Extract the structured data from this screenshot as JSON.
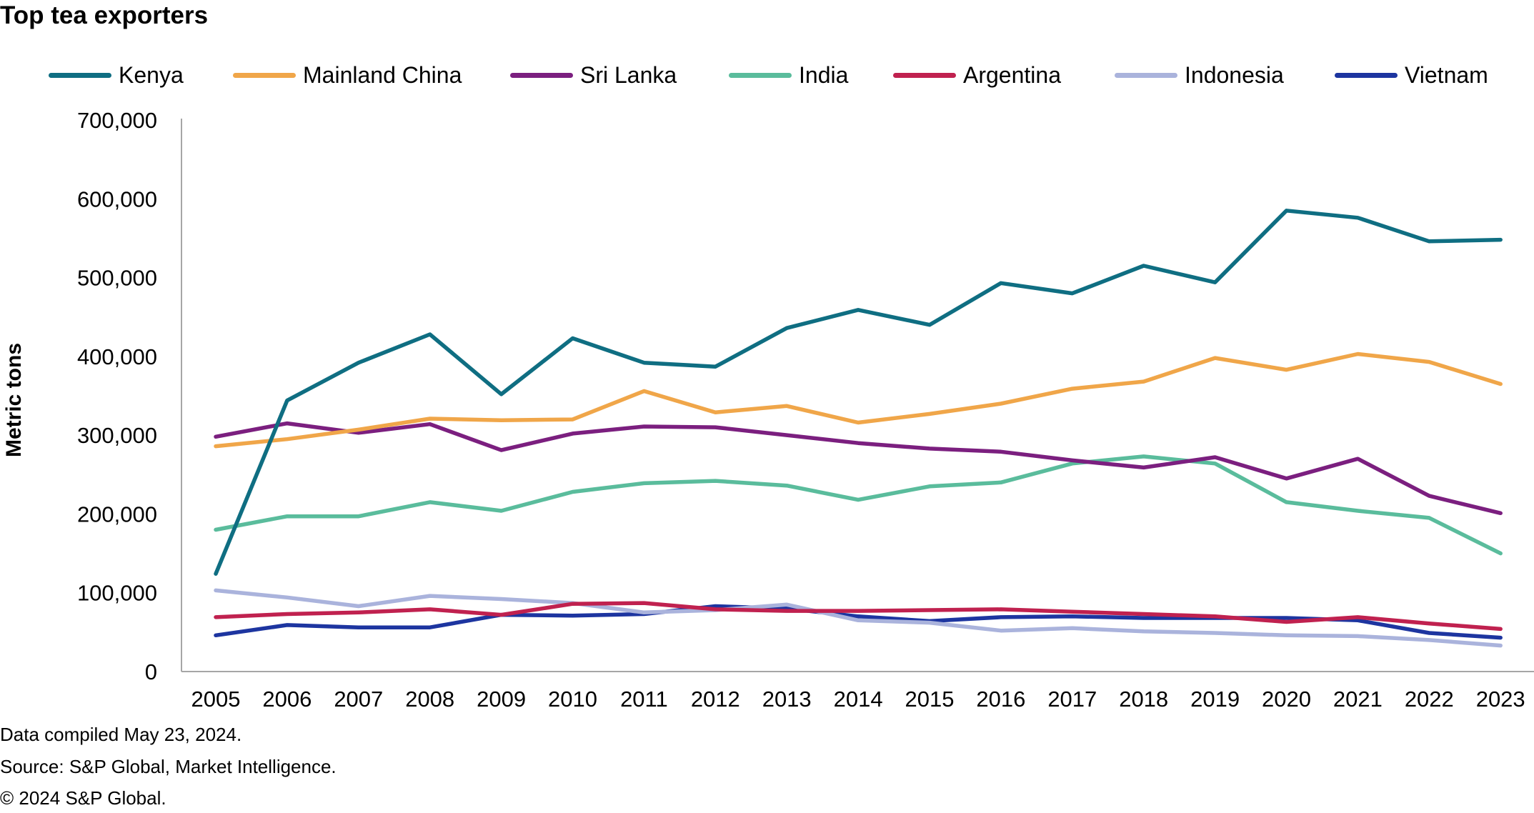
{
  "title": "Top tea exporters",
  "footer": {
    "line1": "Data compiled May 23, 2024.",
    "line2": "Source: S&P Global, Market Intelligence.",
    "line3": "© 2024 S&P Global."
  },
  "chart_data": {
    "type": "line",
    "title": "Top tea exporters",
    "xlabel": "",
    "ylabel": "Metric tons",
    "ylim": [
      0,
      700000
    ],
    "yticks": [
      0,
      100000,
      200000,
      300000,
      400000,
      500000,
      600000,
      700000
    ],
    "ytick_labels": [
      "0",
      "100,000",
      "200,000",
      "300,000",
      "400,000",
      "500,000",
      "600,000",
      "700,000"
    ],
    "grid": false,
    "legend_position": "top",
    "categories": [
      "2005",
      "2006",
      "2007",
      "2008",
      "2009",
      "2010",
      "2011",
      "2012",
      "2013",
      "2014",
      "2015",
      "2016",
      "2017",
      "2018",
      "2019",
      "2020",
      "2021",
      "2022",
      "2023"
    ],
    "series": [
      {
        "name": "Kenya",
        "color": "#0f6e82",
        "values": [
          124000,
          344000,
          392000,
          428000,
          352000,
          423000,
          392000,
          387000,
          436000,
          459000,
          440000,
          493000,
          480000,
          515000,
          494000,
          585000,
          576000,
          546000,
          548000
        ]
      },
      {
        "name": "Mainland China",
        "color": "#f0a649",
        "values": [
          286000,
          295000,
          307000,
          321000,
          319000,
          320000,
          356000,
          329000,
          337000,
          316000,
          327000,
          340000,
          359000,
          368000,
          398000,
          383000,
          403000,
          393000,
          365000
        ]
      },
      {
        "name": "Sri Lanka",
        "color": "#7b1f7f",
        "values": [
          298000,
          315000,
          303000,
          314000,
          281000,
          302000,
          311000,
          310000,
          300000,
          290000,
          283000,
          279000,
          268000,
          259000,
          272000,
          245000,
          270000,
          223000,
          201000
        ]
      },
      {
        "name": "India",
        "color": "#5abc9c",
        "values": [
          180000,
          197000,
          197000,
          215000,
          204000,
          228000,
          239000,
          242000,
          236000,
          218000,
          235000,
          240000,
          264000,
          273000,
          264000,
          215000,
          204000,
          195000,
          150000
        ]
      },
      {
        "name": "Argentina",
        "color": "#c0214f",
        "values": [
          69000,
          73000,
          75000,
          79000,
          72000,
          86000,
          87000,
          79000,
          77000,
          77000,
          78000,
          79000,
          76000,
          73000,
          70000,
          63000,
          69000,
          61000,
          54000
        ]
      },
      {
        "name": "Indonesia",
        "color": "#aab3dc",
        "values": [
          103000,
          94000,
          83000,
          96000,
          92000,
          87000,
          75000,
          78000,
          85000,
          65000,
          62000,
          52000,
          55000,
          51000,
          49000,
          46000,
          45000,
          40000,
          33000
        ]
      },
      {
        "name": "Vietnam",
        "color": "#1d35a0",
        "values": [
          46000,
          59000,
          56000,
          56000,
          72000,
          71000,
          73000,
          83000,
          80000,
          70000,
          64000,
          69000,
          70000,
          68000,
          68000,
          68000,
          65000,
          49000,
          43000
        ]
      }
    ]
  }
}
